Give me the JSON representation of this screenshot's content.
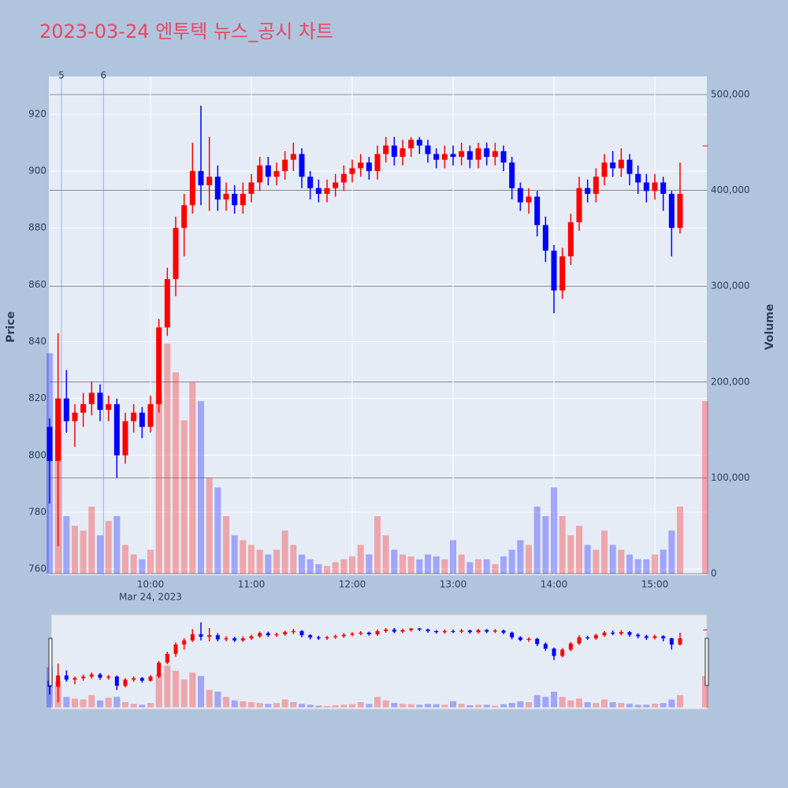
{
  "chart_data": {
    "type": "candlestick",
    "title": "2023-03-24 엔투텍 뉴스_공시 차트",
    "y_label": "Price",
    "y2_label": "Volume",
    "x_date_label": "Mar 24, 2023",
    "increasing_color": "#ff0000",
    "decreasing_color": "#0000ff",
    "grid": true,
    "x": [
      "09:00",
      "09:05",
      "09:10",
      "09:15",
      "09:20",
      "09:25",
      "09:30",
      "09:35",
      "09:40",
      "09:45",
      "09:50",
      "09:55",
      "10:00",
      "10:05",
      "10:10",
      "10:15",
      "10:20",
      "10:25",
      "10:30",
      "10:35",
      "10:40",
      "10:45",
      "10:50",
      "10:55",
      "11:00",
      "11:05",
      "11:10",
      "11:15",
      "11:20",
      "11:25",
      "11:30",
      "11:35",
      "11:40",
      "11:45",
      "11:50",
      "11:55",
      "12:00",
      "12:05",
      "12:10",
      "12:15",
      "12:20",
      "12:25",
      "12:30",
      "12:35",
      "12:40",
      "12:45",
      "12:50",
      "12:55",
      "13:00",
      "13:05",
      "13:10",
      "13:15",
      "13:20",
      "13:25",
      "13:30",
      "13:35",
      "13:40",
      "13:45",
      "13:50",
      "13:55",
      "14:00",
      "14:05",
      "14:10",
      "14:15",
      "14:20",
      "14:25",
      "14:30",
      "14:35",
      "14:40",
      "14:45",
      "14:50",
      "14:55",
      "15:00",
      "15:05",
      "15:10",
      "15:15",
      "15:30"
    ],
    "open": [
      810,
      798,
      820,
      812,
      815,
      818,
      822,
      816,
      818,
      800,
      812,
      815,
      810,
      818,
      845,
      862,
      880,
      888,
      900,
      895,
      898,
      890,
      892,
      888,
      892,
      896,
      902,
      898,
      900,
      904,
      906,
      898,
      894,
      892,
      894,
      896,
      899,
      901,
      903,
      900,
      906,
      909,
      905,
      908,
      911,
      909,
      906,
      904,
      906,
      905,
      907,
      904,
      908,
      905,
      907,
      903,
      894,
      889,
      891,
      881,
      872,
      858,
      870,
      882,
      894,
      892,
      898,
      903,
      901,
      904,
      899,
      896,
      893,
      896,
      892,
      880,
      909
    ],
    "high": [
      813,
      843,
      830,
      818,
      822,
      826,
      825,
      821,
      820,
      815,
      818,
      817,
      821,
      848,
      866,
      884,
      892,
      910,
      923,
      912,
      902,
      896,
      895,
      896,
      899,
      905,
      905,
      903,
      907,
      910,
      908,
      900,
      897,
      897,
      899,
      902,
      904,
      906,
      905,
      909,
      912,
      912,
      911,
      912,
      912,
      911,
      908,
      909,
      909,
      910,
      909,
      910,
      910,
      910,
      909,
      905,
      896,
      894,
      893,
      884,
      874,
      873,
      885,
      898,
      897,
      901,
      906,
      907,
      908,
      906,
      902,
      899,
      899,
      898,
      893,
      903,
      909
    ],
    "low": [
      783,
      768,
      808,
      803,
      810,
      814,
      812,
      812,
      792,
      797,
      808,
      806,
      808,
      815,
      842,
      856,
      870,
      885,
      888,
      886,
      886,
      886,
      885,
      885,
      889,
      893,
      895,
      895,
      897,
      900,
      894,
      890,
      889,
      889,
      891,
      893,
      896,
      898,
      897,
      897,
      903,
      902,
      902,
      905,
      906,
      903,
      901,
      901,
      902,
      902,
      901,
      901,
      902,
      902,
      900,
      890,
      886,
      885,
      877,
      868,
      850,
      855,
      867,
      879,
      889,
      889,
      895,
      898,
      898,
      895,
      892,
      889,
      890,
      886,
      870,
      878,
      909
    ],
    "close": [
      798,
      820,
      812,
      815,
      818,
      822,
      816,
      818,
      800,
      812,
      815,
      810,
      818,
      845,
      862,
      880,
      888,
      900,
      895,
      898,
      890,
      892,
      888,
      892,
      896,
      902,
      898,
      900,
      904,
      906,
      898,
      894,
      892,
      894,
      896,
      899,
      901,
      903,
      900,
      906,
      909,
      905,
      908,
      911,
      909,
      906,
      904,
      906,
      905,
      907,
      904,
      908,
      905,
      907,
      903,
      894,
      889,
      891,
      881,
      872,
      858,
      870,
      882,
      894,
      892,
      898,
      903,
      901,
      904,
      899,
      896,
      893,
      896,
      892,
      880,
      892,
      909
    ],
    "volume": [
      230000,
      150000,
      60000,
      50000,
      45000,
      70000,
      40000,
      55000,
      60000,
      30000,
      20000,
      15000,
      25000,
      190000,
      240000,
      210000,
      160000,
      200000,
      180000,
      100000,
      90000,
      60000,
      40000,
      35000,
      30000,
      25000,
      20000,
      25000,
      45000,
      30000,
      20000,
      15000,
      10000,
      8000,
      12000,
      15000,
      18000,
      30000,
      20000,
      60000,
      40000,
      25000,
      20000,
      18000,
      15000,
      20000,
      18000,
      15000,
      35000,
      20000,
      12000,
      15000,
      15000,
      10000,
      18000,
      25000,
      35000,
      30000,
      70000,
      60000,
      90000,
      60000,
      40000,
      50000,
      30000,
      25000,
      45000,
      30000,
      25000,
      20000,
      15000,
      15000,
      20000,
      25000,
      45000,
      70000,
      180000
    ],
    "news": [
      {
        "label": "5",
        "x": "09:07"
      },
      {
        "label": "6",
        "x": "09:32"
      }
    ],
    "xlim": [
      "09:00",
      "15:30"
    ],
    "xticks": [
      "10:00",
      "11:00",
      "12:00",
      "13:00",
      "14:00",
      "15:00"
    ],
    "ylim": [
      757.8,
      933.3
    ],
    "yticks": [
      760,
      780,
      800,
      820,
      840,
      860,
      880,
      900,
      920
    ],
    "y2lim": [
      -1650,
      518900
    ],
    "y2ticks": [
      0,
      {
        "value": 100000,
        "label": "100,000"
      },
      {
        "value": 200000,
        "label": "200,000"
      },
      {
        "value": 300000,
        "label": "300,000"
      },
      {
        "value": 400000,
        "label": "400,000"
      },
      {
        "value": 500000,
        "label": "500,000"
      }
    ]
  }
}
